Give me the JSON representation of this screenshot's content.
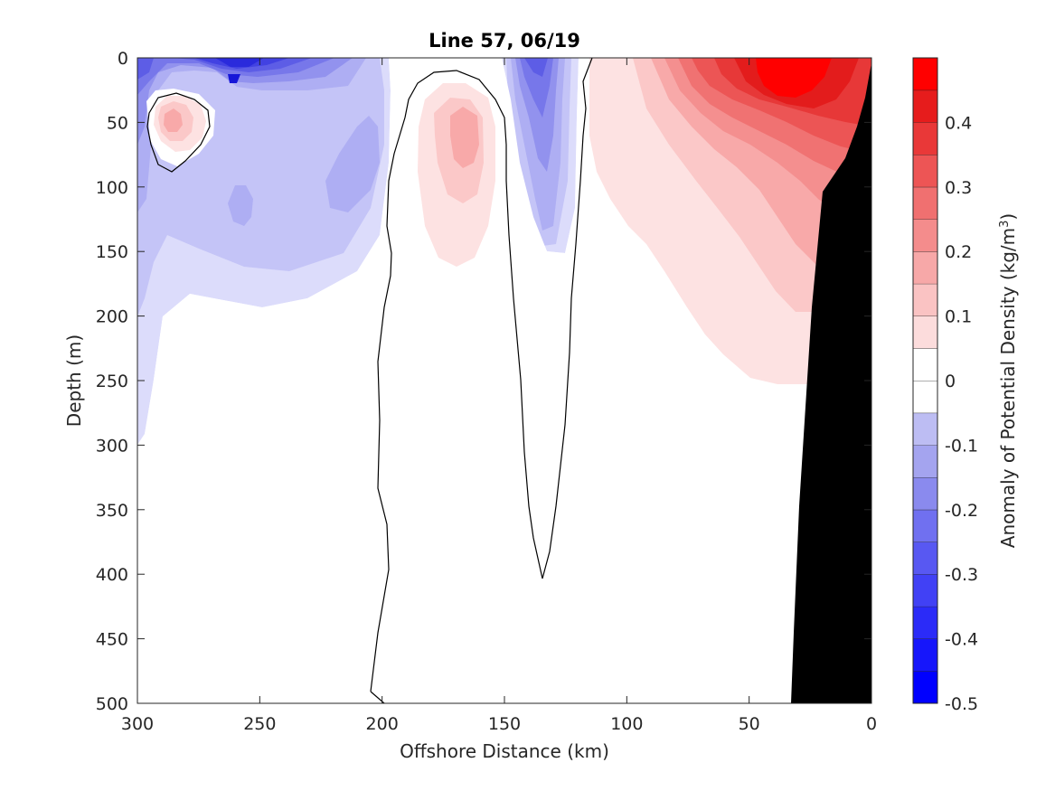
{
  "chart_data": {
    "type": "filled-contour",
    "title": "Line 57, 06/19",
    "xlabel": "Offshore Distance (km)",
    "ylabel": "Depth (m)",
    "xlim": [
      300,
      0
    ],
    "ylim": [
      500,
      0
    ],
    "x_reversed": true,
    "y_reversed": true,
    "xticks": [
      "300",
      "250",
      "200",
      "150",
      "100",
      "50",
      "0"
    ],
    "yticks": [
      "0",
      "50",
      "100",
      "150",
      "200",
      "250",
      "300",
      "350",
      "400",
      "450",
      "500"
    ],
    "colorbar": {
      "label_main": "Anomaly of Potential Density (kg/m",
      "label_sup": "3",
      "label_end": ")",
      "range": [
        -0.5,
        0.5
      ],
      "step": 0.05,
      "ticks": [
        "-0.5",
        "-0.4",
        "-0.3",
        "-0.2",
        "-0.1",
        "0",
        "0.1",
        "0.2",
        "0.3",
        "0.4"
      ]
    },
    "zero_contour_level": 0,
    "regions": [
      {
        "name": "surface negative anomaly (west)",
        "sign": "negative",
        "max_abs": 0.45,
        "x_range_km": [
          300,
          110
        ],
        "depth_range_m": [
          0,
          300
        ]
      },
      {
        "name": "warm eddy near 285 km",
        "sign": "positive",
        "max_abs": 0.15,
        "center_km": 285,
        "center_depth_m": 45
      },
      {
        "name": "positive core near 165 km",
        "sign": "positive",
        "max_abs": 0.15,
        "center_km": 165,
        "center_depth_m": 60
      },
      {
        "name": "nearshore positive anomaly",
        "sign": "positive",
        "max_abs": 0.5,
        "x_range_km": [
          115,
          0
        ],
        "depth_range_m": [
          0,
          255
        ]
      }
    ],
    "bathymetry": "shelf slope in black from about 33 km at 500 m to 0 km near 35 m"
  }
}
